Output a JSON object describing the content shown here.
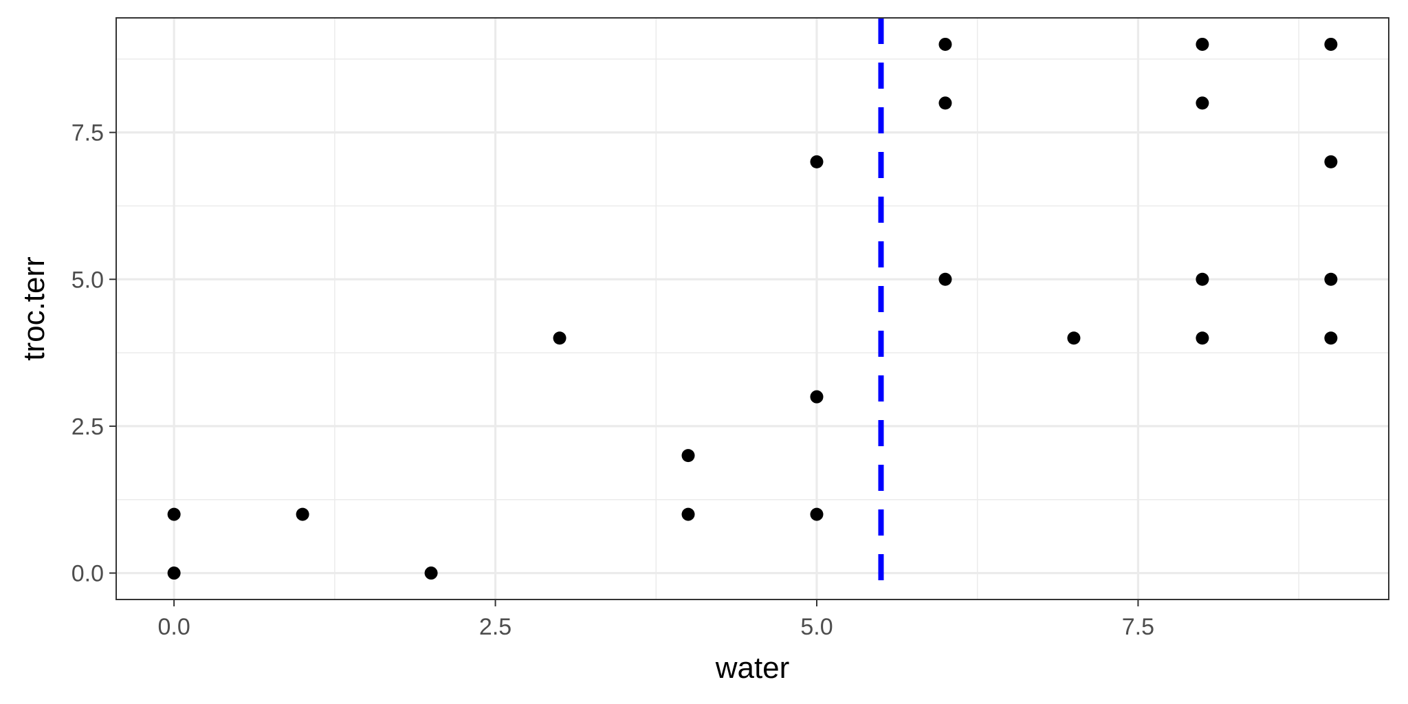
{
  "chart_data": {
    "type": "scatter",
    "title": "",
    "xlabel": "water",
    "ylabel": "troc.terr",
    "xlim": [
      -0.45,
      9.45
    ],
    "ylim": [
      -0.45,
      9.45
    ],
    "x_ticks": [
      0.0,
      2.5,
      5.0,
      7.5
    ],
    "x_tick_labels": [
      "0.0",
      "2.5",
      "5.0",
      "7.5"
    ],
    "y_ticks": [
      0.0,
      2.5,
      5.0,
      7.5
    ],
    "y_tick_labels": [
      "0.0",
      "2.5",
      "5.0",
      "7.5"
    ],
    "grid": true,
    "points": [
      {
        "x": 0,
        "y": 0
      },
      {
        "x": 0,
        "y": 1
      },
      {
        "x": 1,
        "y": 1
      },
      {
        "x": 2,
        "y": 0
      },
      {
        "x": 3,
        "y": 4
      },
      {
        "x": 4,
        "y": 1
      },
      {
        "x": 4,
        "y": 2
      },
      {
        "x": 5,
        "y": 1
      },
      {
        "x": 5,
        "y": 3
      },
      {
        "x": 5,
        "y": 7
      },
      {
        "x": 6,
        "y": 5
      },
      {
        "x": 6,
        "y": 8
      },
      {
        "x": 6,
        "y": 9
      },
      {
        "x": 7,
        "y": 4
      },
      {
        "x": 8,
        "y": 4
      },
      {
        "x": 8,
        "y": 5
      },
      {
        "x": 8,
        "y": 8
      },
      {
        "x": 8,
        "y": 9
      },
      {
        "x": 9,
        "y": 4
      },
      {
        "x": 9,
        "y": 5
      },
      {
        "x": 9,
        "y": 7
      },
      {
        "x": 9,
        "y": 9
      }
    ],
    "reference_line": {
      "orientation": "vertical",
      "x": 5.5,
      "style": "dashed",
      "color": "#0000ff"
    },
    "colors": {
      "points": "#000000",
      "grid": "#ebebeb",
      "panel_border": "#333333",
      "reference_line": "#0000ff"
    }
  }
}
